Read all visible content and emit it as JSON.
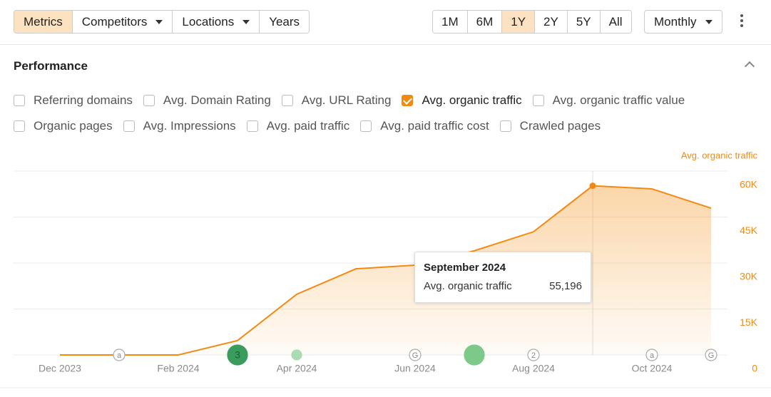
{
  "toolbar": {
    "filters": [
      {
        "label": "Metrics",
        "active": true
      },
      {
        "label": "Competitors",
        "dropdown": true
      },
      {
        "label": "Locations",
        "dropdown": true
      },
      {
        "label": "Years"
      }
    ],
    "ranges": [
      {
        "label": "1M"
      },
      {
        "label": "6M"
      },
      {
        "label": "1Y",
        "active": true
      },
      {
        "label": "2Y"
      },
      {
        "label": "5Y"
      },
      {
        "label": "All"
      }
    ],
    "interval": "Monthly"
  },
  "section": {
    "title": "Performance",
    "metrics": [
      [
        {
          "label": "Referring domains",
          "checked": false
        },
        {
          "label": "Avg. Domain Rating",
          "checked": false
        },
        {
          "label": "Avg. URL Rating",
          "checked": false
        },
        {
          "label": "Avg. organic traffic",
          "checked": true
        },
        {
          "label": "Avg. organic traffic value",
          "checked": false
        }
      ],
      [
        {
          "label": "Organic pages",
          "checked": false
        },
        {
          "label": "Avg. Impressions",
          "checked": false
        },
        {
          "label": "Avg. paid traffic",
          "checked": false
        },
        {
          "label": "Avg. paid traffic cost",
          "checked": false
        },
        {
          "label": "Crawled pages",
          "checked": false
        }
      ]
    ]
  },
  "chart_data": {
    "type": "area",
    "y_label": "Avg. organic traffic",
    "categories": [
      "Dec 2023",
      null,
      "Feb 2024",
      null,
      "Apr 2024",
      null,
      "Jun 2024",
      null,
      "Aug 2024",
      null,
      "Oct 2024",
      null
    ],
    "series": [
      {
        "name": "Avg. organic traffic",
        "color": "#f28a12",
        "values": [
          0,
          0,
          0,
          4700,
          19800,
          28100,
          29300,
          34000,
          40200,
          55196,
          54200,
          47900
        ],
        "value_labels": [
          null,
          null,
          null,
          null,
          null,
          null,
          null,
          null,
          null,
          "55,196",
          null,
          null
        ]
      }
    ],
    "ylim": [
      0,
      60000
    ],
    "yticks": [
      0,
      {
        "value": 15000,
        "label": "15K"
      },
      {
        "value": 30000,
        "label": "30K"
      },
      {
        "value": 45000,
        "label": "45K"
      },
      {
        "value": 60000,
        "label": "60K"
      }
    ],
    "grid": true,
    "highlight_index": 9,
    "tooltip_title": "September 2024",
    "events": [
      null,
      {
        "label": "a"
      },
      null,
      {
        "label": "3",
        "color": "#3a9d5d",
        "large": true
      },
      {
        "color": "#a9dcb2"
      },
      null,
      {
        "label": "G"
      },
      {
        "color": "#7cc98a",
        "large": true
      },
      {
        "label": "2"
      },
      null,
      {
        "label": "a"
      },
      {
        "label": "G"
      }
    ]
  }
}
